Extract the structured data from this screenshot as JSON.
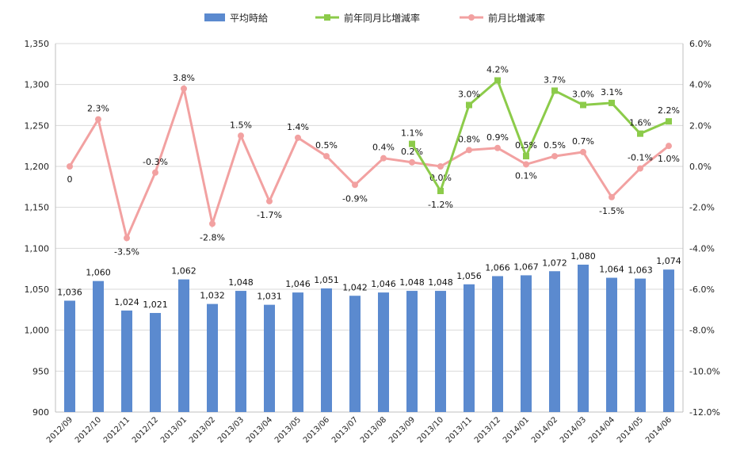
{
  "chart_data": {
    "type": "bar",
    "categories": [
      "2012/09",
      "2012/10",
      "2012/11",
      "2012/12",
      "2013/01",
      "2013/02",
      "2013/03",
      "2013/04",
      "2013/05",
      "2013/06",
      "2013/07",
      "2013/08",
      "2013/09",
      "2013/10",
      "2013/11",
      "2013/12",
      "2014/01",
      "2014/02",
      "2014/03",
      "2014/04",
      "2014/05",
      "2014/06"
    ],
    "series": [
      {
        "name": "平均時給",
        "type": "bar",
        "axis": "left",
        "color": "#5B8ACF",
        "values": [
          1036,
          1060,
          1024,
          1021,
          1062,
          1032,
          1048,
          1031,
          1046,
          1051,
          1042,
          1046,
          1048,
          1048,
          1056,
          1066,
          1067,
          1072,
          1080,
          1064,
          1063,
          1074
        ],
        "labels": [
          "1,036",
          "1,060",
          "1,024",
          "1,021",
          "1,062",
          "1,032",
          "1,048",
          "1,031",
          "1,046",
          "1,051",
          "1,042",
          "1,046",
          "1,048",
          "1,048",
          "1,056",
          "1,066",
          "1,067",
          "1,072",
          "1,080",
          "1,064",
          "1,063",
          "1,074"
        ]
      },
      {
        "name": "前年同月比増減率",
        "type": "line",
        "axis": "right",
        "color": "#8CCB4A",
        "marker": "square",
        "values": [
          null,
          null,
          null,
          null,
          null,
          null,
          null,
          null,
          null,
          null,
          null,
          null,
          1.1,
          -1.2,
          3.0,
          4.2,
          0.5,
          3.7,
          3.0,
          3.1,
          1.6,
          2.2
        ],
        "labels": [
          null,
          null,
          null,
          null,
          null,
          null,
          null,
          null,
          null,
          null,
          null,
          null,
          "1.1%",
          "-1.2%",
          "3.0%",
          "4.2%",
          "0.5%",
          "3.7%",
          "3.0%",
          "3.1%",
          "1.6%",
          "2.2%"
        ]
      },
      {
        "name": "前月比増減率",
        "type": "line",
        "axis": "right",
        "color": "#F2A1A1",
        "marker": "circle",
        "values": [
          0,
          2.3,
          -3.5,
          -0.3,
          3.8,
          -2.8,
          1.5,
          -1.7,
          1.4,
          0.5,
          -0.9,
          0.4,
          0.2,
          0.0,
          0.8,
          0.9,
          0.1,
          0.5,
          0.7,
          -1.5,
          -0.1,
          1.0
        ],
        "labels": [
          "0",
          "2.3%",
          "-3.5%",
          "-0.3%",
          "3.8%",
          "-2.8%",
          "1.5%",
          "-1.7%",
          "1.4%",
          "0.5%",
          "-0.9%",
          "0.4%",
          "0.2%",
          "0.0%",
          "0.8%",
          "0.9%",
          "0.1%",
          "0.5%",
          "0.7%",
          "-1.5%",
          "-0.1%",
          "1.0%"
        ]
      }
    ],
    "left_axis": {
      "ylim": [
        900,
        1350
      ],
      "ticks": [
        "900",
        "950",
        "1,000",
        "1,050",
        "1,100",
        "1,150",
        "1,200",
        "1,250",
        "1,300",
        "1,350"
      ]
    },
    "right_axis": {
      "ylim": [
        -12,
        6
      ],
      "ticks": [
        "-12.0%",
        "-10.0%",
        "-8.0%",
        "-6.0%",
        "-4.0%",
        "-2.0%",
        "0.0%",
        "2.0%",
        "4.0%",
        "6.0%"
      ]
    },
    "gridlines": true,
    "legend_position": "top-center"
  }
}
